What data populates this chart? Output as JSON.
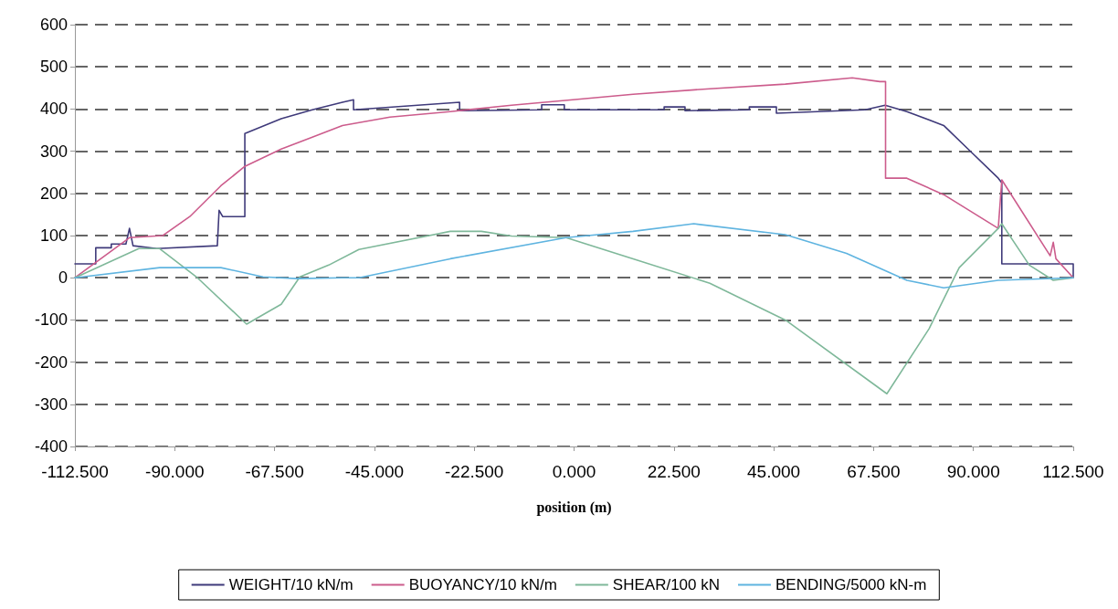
{
  "chart_data": {
    "type": "line",
    "xlabel": "position (m)",
    "xlim": [
      -112.5,
      112.5
    ],
    "ylim": [
      -400,
      600
    ],
    "xticks": [
      {
        "value": -112.5,
        "label": "-112.500"
      },
      {
        "value": -90,
        "label": "-90.000"
      },
      {
        "value": -67.5,
        "label": "-67.500"
      },
      {
        "value": -45,
        "label": "-45.000"
      },
      {
        "value": -22.5,
        "label": "-22.500"
      },
      {
        "value": 0,
        "label": "0.000"
      },
      {
        "value": 22.5,
        "label": "22.500"
      },
      {
        "value": 45,
        "label": "45.000"
      },
      {
        "value": 67.5,
        "label": "67.500"
      },
      {
        "value": 90,
        "label": "90.000"
      },
      {
        "value": 112.5,
        "label": "112.500"
      }
    ],
    "yticks": [
      -400,
      -300,
      -200,
      -100,
      0,
      100,
      200,
      300,
      400,
      500,
      600
    ],
    "grid": "y",
    "legend": "bottom",
    "marker": "none",
    "line_style": "solid",
    "series": [
      {
        "name": "WEIGHT/10 kN/m",
        "color": "#3f3a7a",
        "x": [
          -112.5,
          -107.8,
          -107.8,
          -104.3,
          -104.3,
          -101,
          -100.2,
          -99.4,
          -94,
          -80.4,
          -80,
          -79.2,
          -78.7,
          -74.2,
          -74.2,
          -66,
          -59,
          -52.2,
          -49.7,
          -49.7,
          -25.8,
          -25.8,
          -7.3,
          -7.3,
          -2.2,
          -2.2,
          20.3,
          20.3,
          25,
          25,
          39.5,
          39.5,
          45.6,
          45.6,
          65.6,
          70.1,
          75,
          83.3,
          88.8,
          95.6,
          96.4,
          96.4,
          112.5,
          112.5
        ],
        "values": [
          33,
          33,
          71,
          71,
          80,
          80,
          117,
          76,
          69,
          76,
          160,
          145,
          145,
          145,
          342,
          377,
          398,
          416,
          422,
          398,
          416,
          396,
          398,
          410,
          410,
          398,
          398,
          405,
          405,
          396,
          398,
          405,
          405,
          390,
          398,
          409,
          394,
          361,
          305,
          236,
          225,
          33,
          33,
          0
        ]
      },
      {
        "name": "BUOYANCY/10 kN/m",
        "color": "#cc5c8c",
        "x": [
          -112.5,
          -100.2,
          -92.7,
          -86.6,
          -79.6,
          -74.2,
          -66,
          -59,
          -52.2,
          -41.5,
          -27.9,
          -14.1,
          -0.3,
          13.3,
          30.6,
          47.6,
          62.7,
          68.9,
          70.2,
          70.2,
          75,
          83.3,
          95.6,
          96.4,
          107.3,
          108,
          108.6,
          112.5
        ],
        "values": [
          0,
          95,
          100,
          145,
          218,
          264,
          305,
          333,
          361,
          381,
          394,
          409,
          422,
          435,
          448,
          459,
          474,
          465,
          465,
          236,
          236,
          197,
          117,
          232,
          52,
          84,
          45,
          0
        ]
      },
      {
        "name": "SHEAR/100 kN",
        "color": "#7fb89a",
        "x": [
          -112.5,
          -98.1,
          -93.4,
          -85.1,
          -73.8,
          -66,
          -61.8,
          -55.3,
          -48.5,
          -27.9,
          -20.9,
          -14.1,
          -1.8,
          13.3,
          30.6,
          47.9,
          70.5,
          80,
          86.8,
          95.6,
          96.4,
          102.6,
          108,
          112.5
        ],
        "values": [
          0,
          69,
          69,
          2,
          -110,
          -63,
          2,
          30,
          67,
          110,
          110,
          99,
          95,
          45,
          -13,
          -102,
          -275,
          -121,
          24,
          117,
          128,
          30,
          -6,
          0
        ]
      },
      {
        "name": "BENDING/5000 kN-m",
        "color": "#5fb4e0",
        "x": [
          -112.5,
          -93.4,
          -79.6,
          -70.1,
          -62.5,
          -52.2,
          -48.5,
          -27.9,
          -1.8,
          13.3,
          27,
          47.6,
          61.4,
          75,
          83.3,
          95.6,
          112.5
        ],
        "values": [
          0,
          24,
          24,
          2,
          -2,
          0,
          0,
          45,
          95,
          110,
          128,
          102,
          58,
          -6,
          -24,
          -6,
          0
        ]
      }
    ]
  }
}
